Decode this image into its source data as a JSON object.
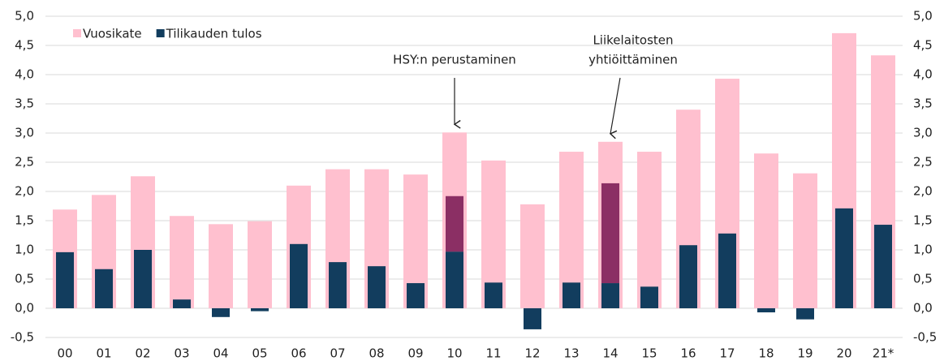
{
  "chart_data": {
    "type": "bar",
    "categories": [
      "00",
      "01",
      "02",
      "03",
      "04",
      "05",
      "06",
      "07",
      "08",
      "09",
      "10",
      "11",
      "12",
      "13",
      "14",
      "15",
      "16",
      "17",
      "18",
      "19",
      "20",
      "21*"
    ],
    "series": [
      {
        "name": "Vuosikate",
        "color": "#ffc0cf",
        "values": [
          1.69,
          1.94,
          2.26,
          1.58,
          1.44,
          1.49,
          2.1,
          2.38,
          2.38,
          2.29,
          3.01,
          2.53,
          1.78,
          2.68,
          2.85,
          2.68,
          3.4,
          3.93,
          2.65,
          2.31,
          4.71,
          4.33
        ]
      },
      {
        "name": "Tilikauden tulos",
        "color": "#123d5e",
        "values": [
          0.96,
          0.67,
          1.0,
          0.15,
          -0.15,
          -0.05,
          1.1,
          0.79,
          0.72,
          0.43,
          0.97,
          0.44,
          -0.36,
          0.44,
          0.43,
          0.37,
          1.08,
          1.28,
          -0.07,
          -0.19,
          1.71,
          1.43
        ]
      },
      {
        "color": "#8b2f64",
        "values": [
          null,
          null,
          null,
          null,
          null,
          null,
          null,
          null,
          null,
          null,
          0.95,
          null,
          null,
          null,
          1.71,
          null,
          null,
          null,
          null,
          null,
          null,
          null
        ]
      }
    ],
    "ylim": [
      -0.5,
      5.0
    ],
    "yticks": [
      {
        "value": -0.5,
        "label": "-0,5"
      },
      {
        "value": 0,
        "label": "0,0"
      },
      {
        "value": 0.5,
        "label": "0,5"
      },
      {
        "value": 1,
        "label": "1,0"
      },
      {
        "value": 1.5,
        "label": "1,5"
      },
      {
        "value": 2,
        "label": "2,0"
      },
      {
        "value": 2.5,
        "label": "2,5"
      },
      {
        "value": 3,
        "label": "3,0"
      },
      {
        "value": 3.5,
        "label": "3,5"
      },
      {
        "value": 4,
        "label": "4,0"
      },
      {
        "value": 4.5,
        "label": "4,5"
      },
      {
        "value": 5,
        "label": "5,0"
      }
    ],
    "y2lim": [
      -0.5,
      5.0
    ],
    "y2ticks": [
      {
        "value": -0.5,
        "label": "-0,5"
      },
      {
        "value": 0,
        "label": "0,0"
      },
      {
        "value": 0.5,
        "label": "0,5"
      },
      {
        "value": 1,
        "label": "1,0"
      },
      {
        "value": 1.5,
        "label": "1,5"
      },
      {
        "value": 2,
        "label": "2,0"
      },
      {
        "value": 2.5,
        "label": "2,5"
      },
      {
        "value": 3,
        "label": "3,0"
      },
      {
        "value": 3.5,
        "label": "3,5"
      },
      {
        "value": 4,
        "label": "4,0"
      },
      {
        "value": 4.5,
        "label": "4,5"
      },
      {
        "value": 5,
        "label": "5,0"
      }
    ],
    "grid": true,
    "legend": "top-left",
    "annotations": [
      {
        "category": 10,
        "lines": [
          "HSY:n perustaminen"
        ]
      },
      {
        "category": 14,
        "lines": [
          "Liikelaitosten",
          "yhtiöittäminen"
        ]
      }
    ]
  }
}
